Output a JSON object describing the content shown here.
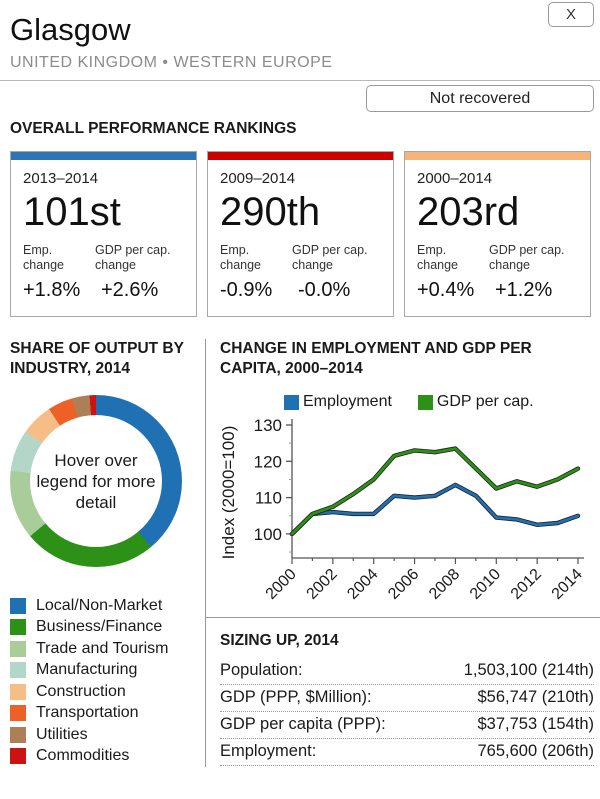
{
  "header": {
    "title": "Glasgow",
    "subtitle": "UNITED KINGDOM • WESTERN EUROPE",
    "close_label": "X",
    "status_badge": "Not recovered"
  },
  "rankings": {
    "heading": "OVERALL PERFORMANCE RANKINGS",
    "emp_label": "Emp. change",
    "gdp_label": "GDP per cap. change",
    "cards": [
      {
        "period": "2013–2014",
        "rank": "101st",
        "accent": "#2e75b6",
        "emp_change": "+1.8%",
        "gdp_change": "+2.6%"
      },
      {
        "period": "2009–2014",
        "rank": "290th",
        "accent": "#cc0000",
        "emp_change": "-0.9%",
        "gdp_change": "-0.0%"
      },
      {
        "period": "2000–2014",
        "rank": "203rd",
        "accent": "#f4b47c",
        "emp_change": "+0.4%",
        "gdp_change": "+1.2%"
      }
    ]
  },
  "chart_data": [
    {
      "type": "pie",
      "title": "SHARE OF OUTPUT BY INDUSTRY, 2014",
      "center_note": "Hover over legend for more detail",
      "legend_position": "bottom-left",
      "slices": [
        {
          "label": "Local/Non-Market",
          "value": 38.9,
          "color": "#2070b4"
        },
        {
          "label": "Business/Finance",
          "value": 25.0,
          "color": "#2d9118"
        },
        {
          "label": "Trade and Tourism",
          "value": 13.0,
          "color": "#a8cd9b"
        },
        {
          "label": "Manufacturing",
          "value": 7.8,
          "color": "#b4d6c9"
        },
        {
          "label": "Construction",
          "value": 6.1,
          "color": "#f6bd87"
        },
        {
          "label": "Transportation",
          "value": 4.7,
          "color": "#ee6126"
        },
        {
          "label": "Utilities",
          "value": 3.3,
          "color": "#ad7f57"
        },
        {
          "label": "Commodities",
          "value": 1.2,
          "color": "#cc1212"
        }
      ]
    },
    {
      "type": "line",
      "title": "CHANGE IN EMPLOYMENT AND GDP PER CAPITA, 2000–2014",
      "ylabel": "Index (2000=100)",
      "ylim": [
        95,
        132
      ],
      "yticks": [
        100,
        110,
        120,
        130
      ],
      "x": [
        2000,
        2001,
        2002,
        2003,
        2004,
        2005,
        2006,
        2007,
        2008,
        2009,
        2010,
        2011,
        2012,
        2013,
        2014
      ],
      "xticks": [
        2000,
        2002,
        2004,
        2006,
        2008,
        2010,
        2012,
        2014
      ],
      "grid": false,
      "legend_position": "top",
      "series": [
        {
          "name": "Employment",
          "color": "#2070b4",
          "values": [
            100,
            105.5,
            106,
            105.5,
            105.5,
            110.5,
            110,
            110.5,
            113.5,
            110.5,
            104.5,
            104,
            102.5,
            103,
            105
          ]
        },
        {
          "name": "GDP per cap.",
          "color": "#2d9118",
          "values": [
            100,
            105.5,
            107.5,
            111,
            115,
            121.5,
            123,
            122.5,
            123.5,
            118,
            112.5,
            114.5,
            113,
            115,
            118
          ]
        }
      ]
    }
  ],
  "sizing": {
    "heading": "SIZING UP, 2014",
    "rows": [
      {
        "label": "Population:",
        "value": "1,503,100 (214th)"
      },
      {
        "label": "GDP (PPP, $Million):",
        "value": "$56,747 (210th)"
      },
      {
        "label": "GDP per capita (PPP):",
        "value": "$37,753 (154th)"
      },
      {
        "label": "Employment:",
        "value": "765,600 (206th)"
      }
    ]
  }
}
